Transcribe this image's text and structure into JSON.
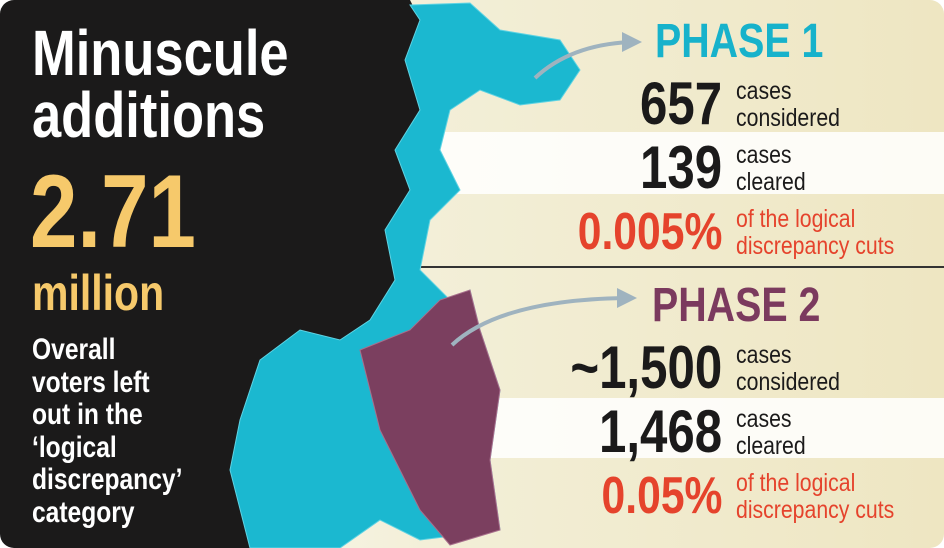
{
  "left": {
    "title": [
      "Minuscule",
      "additions"
    ],
    "big_number": "2.71",
    "unit": "million",
    "description": [
      "Overall",
      "voters left",
      "out in the",
      "‘logical",
      "discrepancy’",
      "category"
    ]
  },
  "phases": [
    {
      "title": "PHASE 1",
      "rows": [
        {
          "value": "657",
          "text": [
            "cases",
            "considered"
          ]
        },
        {
          "value": "139",
          "text": [
            "cases",
            "cleared"
          ]
        },
        {
          "value": "0.005%",
          "text": [
            "of the logical",
            "discrepancy cuts"
          ]
        }
      ]
    },
    {
      "title": "PHASE 2",
      "rows": [
        {
          "value": "~1,500",
          "text": [
            "cases",
            "considered"
          ]
        },
        {
          "value": "1,468",
          "text": [
            "cases",
            "cleared"
          ]
        },
        {
          "value": "0.05%",
          "text": [
            "of the logical",
            "discrepancy cuts"
          ]
        }
      ]
    }
  ]
}
